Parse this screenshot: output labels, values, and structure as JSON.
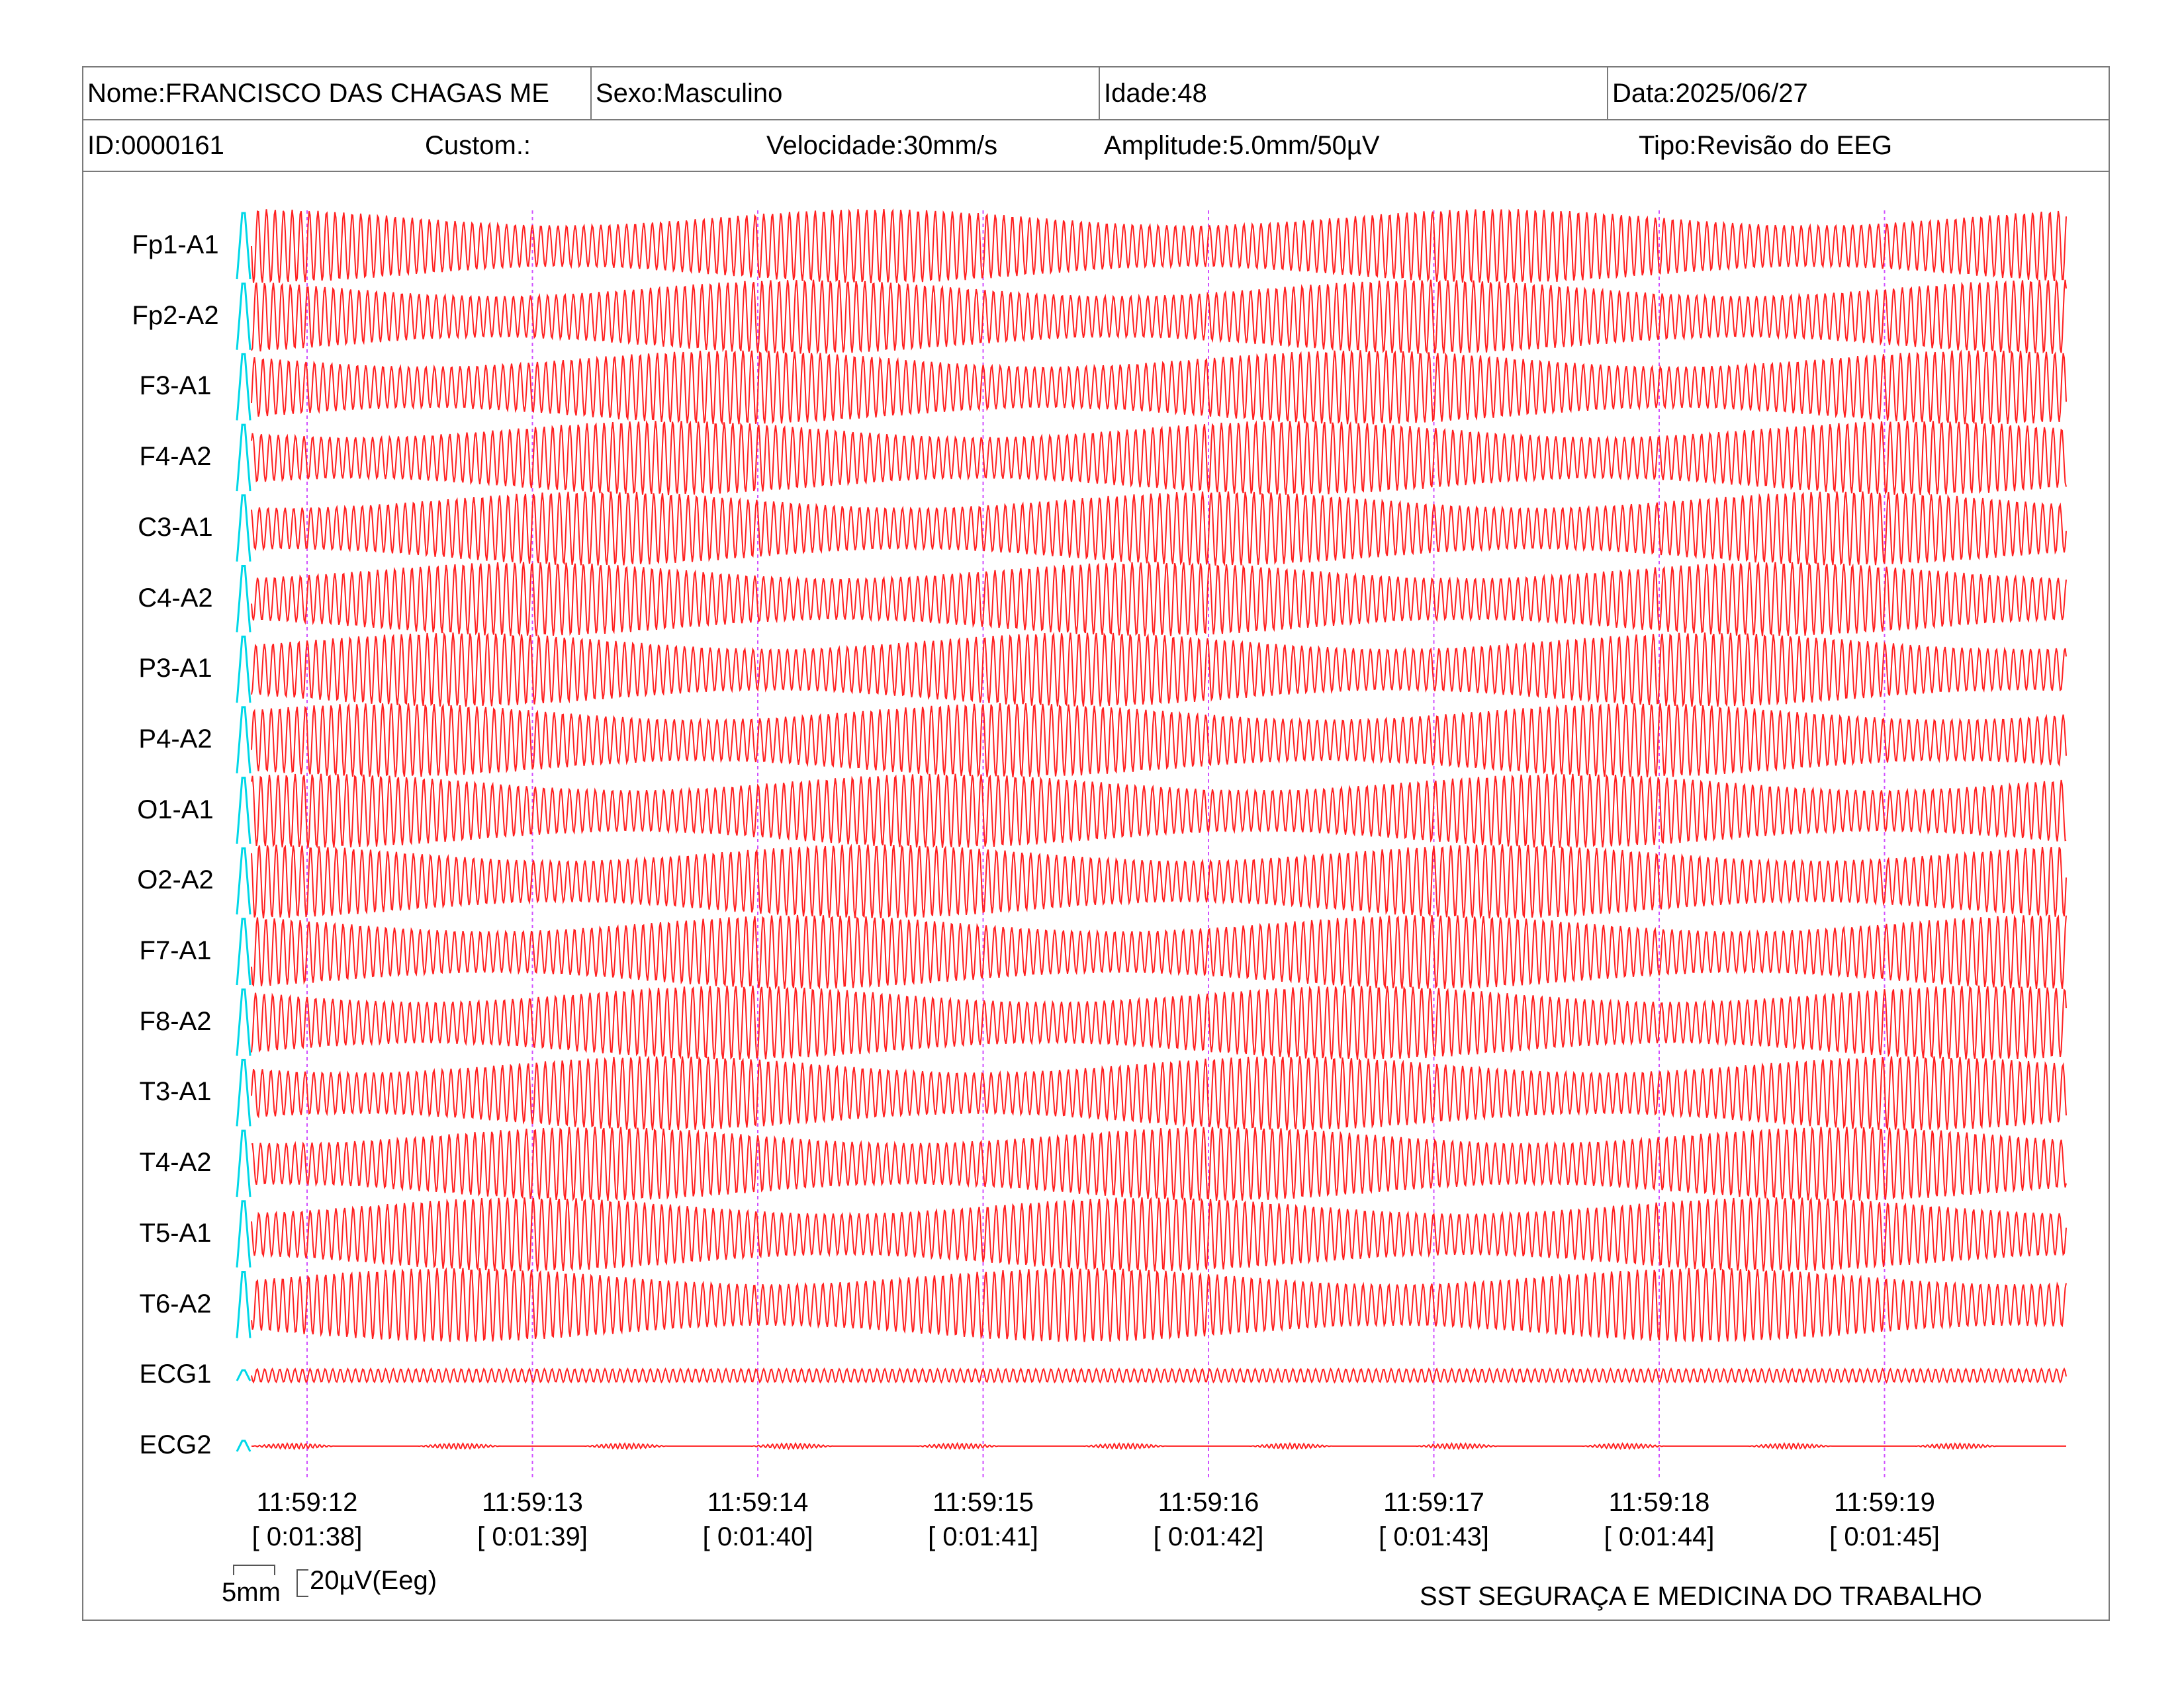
{
  "header": {
    "name": "Nome:FRANCISCO DAS CHAGAS ME",
    "sex": "Sexo:Masculino",
    "age": "Idade:48",
    "date": "Data:2025/06/27",
    "id": "ID:0000161",
    "custom": "Custom.:",
    "speed": "Velocidade:30mm/s",
    "amplitude": "Amplitude:5.0mm/50µV",
    "type": "Tipo:Revisão do EEG"
  },
  "channels": [
    "Fp1-A1",
    "Fp2-A2",
    "F3-A1",
    "F4-A2",
    "C3-A1",
    "C4-A2",
    "P3-A1",
    "P4-A2",
    "O1-A1",
    "O2-A2",
    "F7-A1",
    "F8-A2",
    "T3-A1",
    "T4-A2",
    "T5-A1",
    "T6-A2",
    "ECG1",
    "ECG2"
  ],
  "time_marks": [
    {
      "clock": "11:59:12",
      "elapsed": "[ 0:01:38]"
    },
    {
      "clock": "11:59:13",
      "elapsed": "[ 0:01:39]"
    },
    {
      "clock": "11:59:14",
      "elapsed": "[ 0:01:40]"
    },
    {
      "clock": "11:59:15",
      "elapsed": "[ 0:01:41]"
    },
    {
      "clock": "11:59:16",
      "elapsed": "[ 0:01:42]"
    },
    {
      "clock": "11:59:17",
      "elapsed": "[ 0:01:43]"
    },
    {
      "clock": "11:59:18",
      "elapsed": "[ 0:01:44]"
    },
    {
      "clock": "11:59:19",
      "elapsed": "[ 0:01:45]"
    }
  ],
  "scale": {
    "time": "5mm",
    "amplitude": "20µV(Eeg)"
  },
  "footer": "SST SEGURAÇA E MEDICINA DO TRABALHO",
  "colors": {
    "trace": "#ff2020",
    "calibration": "#00d8e8",
    "marker": "#d050ff",
    "border": "#7a7a7a"
  }
}
